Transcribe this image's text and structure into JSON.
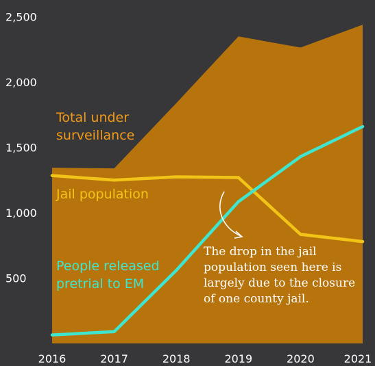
{
  "chart_data": {
    "type": "area",
    "x": [
      2016,
      2017,
      2018,
      2019,
      2020,
      2021
    ],
    "x_tick_labels": [
      "2016",
      "2017",
      "2018",
      "2019",
      "2020",
      "2021"
    ],
    "y_tick_values": [
      500,
      1000,
      1500,
      2000,
      2500
    ],
    "y_tick_labels": [
      "500",
      "1,000",
      "1,500",
      "2,000",
      "2,500"
    ],
    "ylim": [
      0,
      2540
    ],
    "grid": false,
    "series": [
      {
        "name": "Total under surveillance",
        "label_lines": [
          "Total under",
          "surveillance"
        ],
        "kind": "area",
        "values": [
          1345,
          1340,
          1840,
          2350,
          2265,
          2440
        ],
        "color": "#b8740c"
      },
      {
        "name": "Jail population",
        "label_lines": [
          "Jail population"
        ],
        "kind": "line",
        "values": [
          1285,
          1250,
          1275,
          1270,
          835,
          780
        ],
        "color": "#f2c418"
      },
      {
        "name": "People released pretrial to EM",
        "label_lines": [
          "People released",
          "pretrial to EM"
        ],
        "kind": "line",
        "values": [
          65,
          90,
          560,
          1085,
          1430,
          1660
        ],
        "color": "#3ee6cf"
      }
    ],
    "annotations": [
      {
        "lines": [
          "The drop in the jail",
          "population seen here is",
          "largely due to the closure",
          "of one county jail."
        ]
      }
    ]
  },
  "colors": {
    "background": "#37373a",
    "area_label": "#f29a18",
    "arrow": "#ffffff"
  }
}
